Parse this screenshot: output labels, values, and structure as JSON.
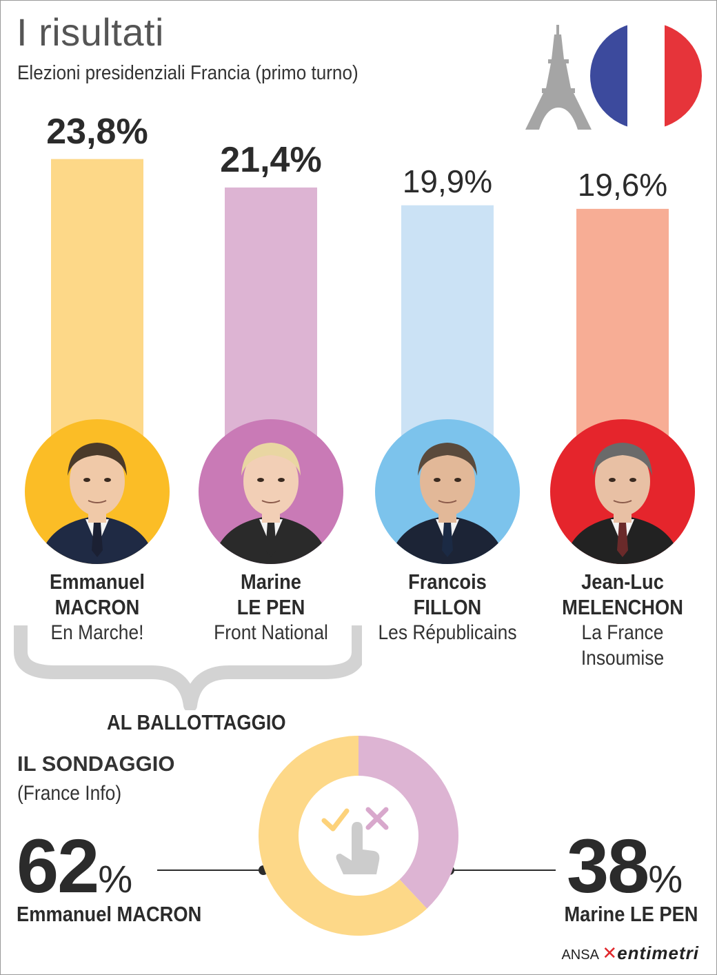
{
  "header": {
    "title": "I risultati",
    "subtitle": "Elezioni presidenziali Francia (primo turno)"
  },
  "colors": {
    "macron": "#fdd888",
    "lepen": "#ddb4d3",
    "fillon": "#cbe2f5",
    "melenchon": "#f7ad95",
    "flag_blue": "#3c4a9d",
    "flag_red": "#e6343a"
  },
  "chart_data": [
    {
      "type": "bar",
      "categories": [
        "Emmanuel MACRON",
        "Marine LE PEN",
        "Francois FILLON",
        "Jean-Luc MELENCHON"
      ],
      "values": [
        23.8,
        21.4,
        19.9,
        19.6
      ],
      "value_labels": [
        "23,8%",
        "21,4%",
        "19,9%",
        "19,6%"
      ],
      "unit": "%"
    },
    {
      "type": "pie",
      "title": "IL SONDAGGIO",
      "source": "(France Info)",
      "categories": [
        "Emmanuel MACRON",
        "Marine LE PEN"
      ],
      "values": [
        62,
        38
      ],
      "value_labels": [
        "62",
        "38"
      ],
      "unit": "%"
    }
  ],
  "candidates": [
    {
      "first": "Emmanuel",
      "last": "MACRON",
      "party": [
        "En Marche!"
      ],
      "pct": "23,8%",
      "value": 23.8,
      "color": "#fdd888",
      "photo_bg": "#fbbd26",
      "skin": "#f0c9a8",
      "hair": "#4a3a2a",
      "suit": "#1f2a44",
      "tie": "#1b2033",
      "status": "win"
    },
    {
      "first": "Marine",
      "last": "LE PEN",
      "party": [
        "Front National"
      ],
      "pct": "21,4%",
      "value": 21.4,
      "color": "#ddb4d3",
      "photo_bg": "#c97ab6",
      "skin": "#f2cfb6",
      "hair": "#e9d6a2",
      "suit": "#2a2a2a",
      "tie": "#2a2a2a",
      "status": "win"
    },
    {
      "first": "Francois",
      "last": "FILLON",
      "party": [
        "Les Républicains"
      ],
      "pct": "19,9%",
      "value": 19.9,
      "color": "#cbe2f5",
      "photo_bg": "#7cc3ec",
      "skin": "#e2b898",
      "hair": "#5a4a3c",
      "suit": "#1c2436",
      "tie": "#1b2a44",
      "status": "lose"
    },
    {
      "first": "Jean-Luc",
      "last": "MELENCHON",
      "party": [
        "La France",
        "Insoumise"
      ],
      "pct": "19,6%",
      "value": 19.6,
      "color": "#f7ad95",
      "photo_bg": "#e5252c",
      "skin": "#e8c0a4",
      "hair": "#6a6a6a",
      "suit": "#222222",
      "tie": "#6a2a2a",
      "status": "lose"
    }
  ],
  "ballottaggio": "AL BALLOTTAGGIO",
  "poll": {
    "title": "IL SONDAGGIO",
    "source": "(France Info)",
    "left": {
      "value": "62",
      "unit": "%",
      "name": "Emmanuel MACRON"
    },
    "right": {
      "value": "38",
      "unit": "%",
      "name": "Marine LE PEN"
    }
  },
  "credit": {
    "agency": "ANSA",
    "brand": "entimetri"
  },
  "icons": [
    "eiffel-tower-icon",
    "french-flag-icon",
    "check-icon",
    "cross-icon",
    "hand-pointer-icon"
  ]
}
